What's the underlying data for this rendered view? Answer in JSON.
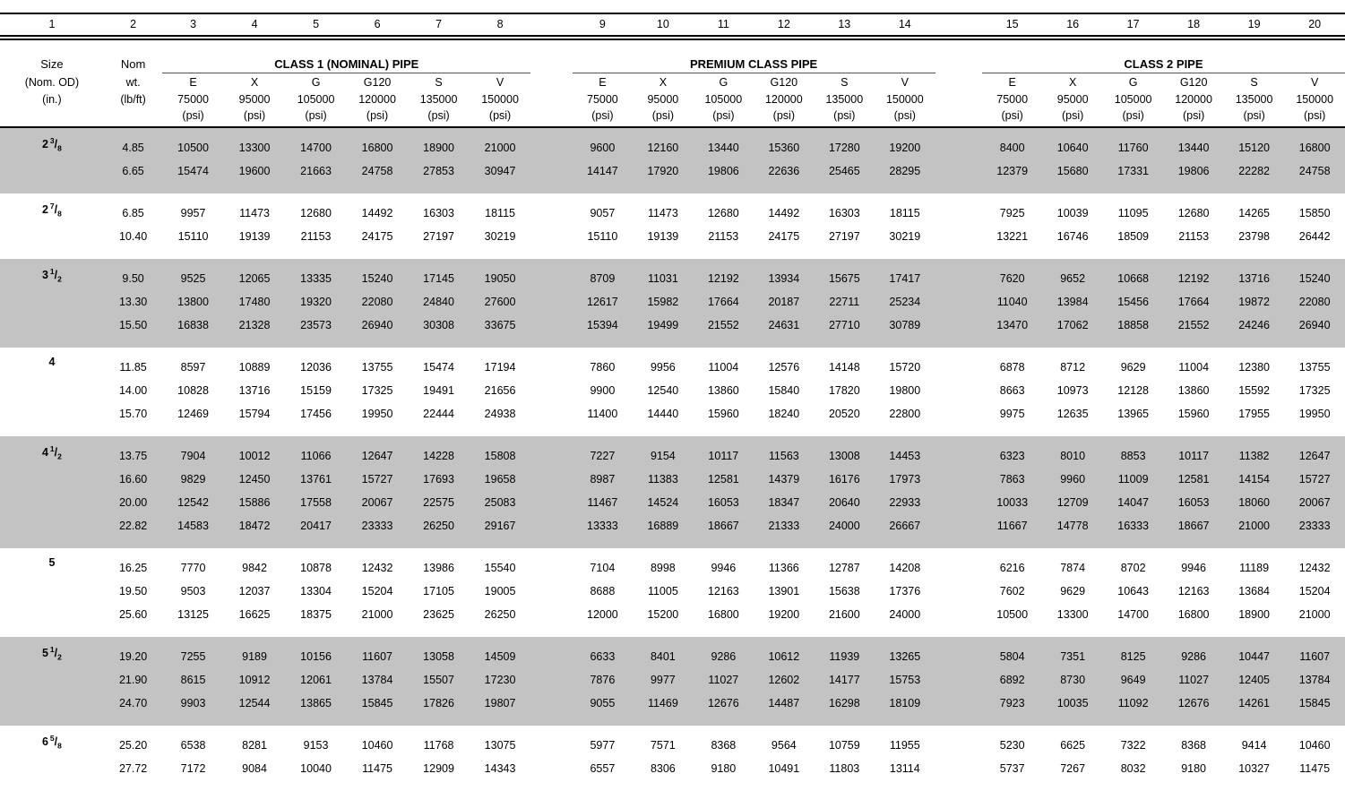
{
  "table": {
    "column_numbers": [
      "1",
      "2",
      "3",
      "4",
      "5",
      "6",
      "7",
      "8",
      "9",
      "10",
      "11",
      "12",
      "13",
      "14",
      "15",
      "16",
      "17",
      "18",
      "19",
      "20"
    ],
    "corner": {
      "size_lines": [
        "Size",
        "(Nom. OD)",
        "(in.)"
      ],
      "weight_lines": [
        "Nom",
        "wt.",
        "(lb/ft)"
      ]
    },
    "sections": [
      "CLASS 1 (NOMINAL) PIPE",
      "PREMIUM CLASS PIPE",
      "CLASS 2 PIPE"
    ],
    "grades": [
      "E",
      "X",
      "G",
      "G120",
      "S",
      "V"
    ],
    "grade_strengths": [
      "75000",
      "95000",
      "105000",
      "120000",
      "135000",
      "150000"
    ],
    "psi_unit": "(psi)",
    "groups": [
      {
        "size_whole": "2",
        "size_num": "3",
        "size_den": "8",
        "shaded": true,
        "rows": [
          {
            "wt": "4.85",
            "class1": [
              "10500",
              "13300",
              "14700",
              "16800",
              "18900",
              "21000"
            ],
            "premium": [
              "9600",
              "12160",
              "13440",
              "15360",
              "17280",
              "19200"
            ],
            "class2": [
              "8400",
              "10640",
              "11760",
              "13440",
              "15120",
              "16800"
            ]
          },
          {
            "wt": "6.65",
            "class1": [
              "15474",
              "19600",
              "21663",
              "24758",
              "27853",
              "30947"
            ],
            "premium": [
              "14147",
              "17920",
              "19806",
              "22636",
              "25465",
              "28295"
            ],
            "class2": [
              "12379",
              "15680",
              "17331",
              "19806",
              "22282",
              "24758"
            ]
          }
        ]
      },
      {
        "size_whole": "2",
        "size_num": "7",
        "size_den": "8",
        "shaded": false,
        "rows": [
          {
            "wt": "6.85",
            "class1": [
              "9957",
              "11473",
              "12680",
              "14492",
              "16303",
              "18115"
            ],
            "premium": [
              "9057",
              "11473",
              "12680",
              "14492",
              "16303",
              "18115"
            ],
            "class2": [
              "7925",
              "10039",
              "11095",
              "12680",
              "14265",
              "15850"
            ]
          },
          {
            "wt": "10.40",
            "class1": [
              "15110",
              "19139",
              "21153",
              "24175",
              "27197",
              "30219"
            ],
            "premium": [
              "15110",
              "19139",
              "21153",
              "24175",
              "27197",
              "30219"
            ],
            "class2": [
              "13221",
              "16746",
              "18509",
              "21153",
              "23798",
              "26442"
            ]
          }
        ]
      },
      {
        "size_whole": "3",
        "size_num": "1",
        "size_den": "2",
        "shaded": true,
        "rows": [
          {
            "wt": "9.50",
            "class1": [
              "9525",
              "12065",
              "13335",
              "15240",
              "17145",
              "19050"
            ],
            "premium": [
              "8709",
              "11031",
              "12192",
              "13934",
              "15675",
              "17417"
            ],
            "class2": [
              "7620",
              "9652",
              "10668",
              "12192",
              "13716",
              "15240"
            ]
          },
          {
            "wt": "13.30",
            "class1": [
              "13800",
              "17480",
              "19320",
              "22080",
              "24840",
              "27600"
            ],
            "premium": [
              "12617",
              "15982",
              "17664",
              "20187",
              "22711",
              "25234"
            ],
            "class2": [
              "11040",
              "13984",
              "15456",
              "17664",
              "19872",
              "22080"
            ]
          },
          {
            "wt": "15.50",
            "class1": [
              "16838",
              "21328",
              "23573",
              "26940",
              "30308",
              "33675"
            ],
            "premium": [
              "15394",
              "19499",
              "21552",
              "24631",
              "27710",
              "30789"
            ],
            "class2": [
              "13470",
              "17062",
              "18858",
              "21552",
              "24246",
              "26940"
            ]
          }
        ]
      },
      {
        "size_whole": "4",
        "size_num": "",
        "size_den": "",
        "shaded": false,
        "rows": [
          {
            "wt": "11.85",
            "class1": [
              "8597",
              "10889",
              "12036",
              "13755",
              "15474",
              "17194"
            ],
            "premium": [
              "7860",
              "9956",
              "11004",
              "12576",
              "14148",
              "15720"
            ],
            "class2": [
              "6878",
              "8712",
              "9629",
              "11004",
              "12380",
              "13755"
            ]
          },
          {
            "wt": "14.00",
            "class1": [
              "10828",
              "13716",
              "15159",
              "17325",
              "19491",
              "21656"
            ],
            "premium": [
              "9900",
              "12540",
              "13860",
              "15840",
              "17820",
              "19800"
            ],
            "class2": [
              "8663",
              "10973",
              "12128",
              "13860",
              "15592",
              "17325"
            ]
          },
          {
            "wt": "15.70",
            "class1": [
              "12469",
              "15794",
              "17456",
              "19950",
              "22444",
              "24938"
            ],
            "premium": [
              "11400",
              "14440",
              "15960",
              "18240",
              "20520",
              "22800"
            ],
            "class2": [
              "9975",
              "12635",
              "13965",
              "15960",
              "17955",
              "19950"
            ]
          }
        ]
      },
      {
        "size_whole": "4",
        "size_num": "1",
        "size_den": "2",
        "shaded": true,
        "rows": [
          {
            "wt": "13.75",
            "class1": [
              "7904",
              "10012",
              "11066",
              "12647",
              "14228",
              "15808"
            ],
            "premium": [
              "7227",
              "9154",
              "10117",
              "11563",
              "13008",
              "14453"
            ],
            "class2": [
              "6323",
              "8010",
              "8853",
              "10117",
              "11382",
              "12647"
            ]
          },
          {
            "wt": "16.60",
            "class1": [
              "9829",
              "12450",
              "13761",
              "15727",
              "17693",
              "19658"
            ],
            "premium": [
              "8987",
              "11383",
              "12581",
              "14379",
              "16176",
              "17973"
            ],
            "class2": [
              "7863",
              "9960",
              "11009",
              "12581",
              "14154",
              "15727"
            ]
          },
          {
            "wt": "20.00",
            "class1": [
              "12542",
              "15886",
              "17558",
              "20067",
              "22575",
              "25083"
            ],
            "premium": [
              "11467",
              "14524",
              "16053",
              "18347",
              "20640",
              "22933"
            ],
            "class2": [
              "10033",
              "12709",
              "14047",
              "16053",
              "18060",
              "20067"
            ]
          },
          {
            "wt": "22.82",
            "class1": [
              "14583",
              "18472",
              "20417",
              "23333",
              "26250",
              "29167"
            ],
            "premium": [
              "13333",
              "16889",
              "18667",
              "21333",
              "24000",
              "26667"
            ],
            "class2": [
              "11667",
              "14778",
              "16333",
              "18667",
              "21000",
              "23333"
            ]
          }
        ]
      },
      {
        "size_whole": "5",
        "size_num": "",
        "size_den": "",
        "shaded": false,
        "rows": [
          {
            "wt": "16.25",
            "class1": [
              "7770",
              "9842",
              "10878",
              "12432",
              "13986",
              "15540"
            ],
            "premium": [
              "7104",
              "8998",
              "9946",
              "11366",
              "12787",
              "14208"
            ],
            "class2": [
              "6216",
              "7874",
              "8702",
              "9946",
              "11189",
              "12432"
            ]
          },
          {
            "wt": "19.50",
            "class1": [
              "9503",
              "12037",
              "13304",
              "15204",
              "17105",
              "19005"
            ],
            "premium": [
              "8688",
              "11005",
              "12163",
              "13901",
              "15638",
              "17376"
            ],
            "class2": [
              "7602",
              "9629",
              "10643",
              "12163",
              "13684",
              "15204"
            ]
          },
          {
            "wt": "25.60",
            "class1": [
              "13125",
              "16625",
              "18375",
              "21000",
              "23625",
              "26250"
            ],
            "premium": [
              "12000",
              "15200",
              "16800",
              "19200",
              "21600",
              "24000"
            ],
            "class2": [
              "10500",
              "13300",
              "14700",
              "16800",
              "18900",
              "21000"
            ]
          }
        ]
      },
      {
        "size_whole": "5",
        "size_num": "1",
        "size_den": "2",
        "shaded": true,
        "rows": [
          {
            "wt": "19.20",
            "class1": [
              "7255",
              "9189",
              "10156",
              "11607",
              "13058",
              "14509"
            ],
            "premium": [
              "6633",
              "8401",
              "9286",
              "10612",
              "11939",
              "13265"
            ],
            "class2": [
              "5804",
              "7351",
              "8125",
              "9286",
              "10447",
              "11607"
            ]
          },
          {
            "wt": "21.90",
            "class1": [
              "8615",
              "10912",
              "12061",
              "13784",
              "15507",
              "17230"
            ],
            "premium": [
              "7876",
              "9977",
              "11027",
              "12602",
              "14177",
              "15753"
            ],
            "class2": [
              "6892",
              "8730",
              "9649",
              "11027",
              "12405",
              "13784"
            ]
          },
          {
            "wt": "24.70",
            "class1": [
              "9903",
              "12544",
              "13865",
              "15845",
              "17826",
              "19807"
            ],
            "premium": [
              "9055",
              "11469",
              "12676",
              "14487",
              "16298",
              "18109"
            ],
            "class2": [
              "7923",
              "10035",
              "11092",
              "12676",
              "14261",
              "15845"
            ]
          }
        ]
      },
      {
        "size_whole": "6",
        "size_num": "5",
        "size_den": "8",
        "shaded": false,
        "rows": [
          {
            "wt": "25.20",
            "class1": [
              "6538",
              "8281",
              "9153",
              "10460",
              "11768",
              "13075"
            ],
            "premium": [
              "5977",
              "7571",
              "8368",
              "9564",
              "10759",
              "11955"
            ],
            "class2": [
              "5230",
              "6625",
              "7322",
              "8368",
              "9414",
              "10460"
            ]
          },
          {
            "wt": "27.72",
            "class1": [
              "7172",
              "9084",
              "10040",
              "11475",
              "12909",
              "14343"
            ],
            "premium": [
              "6557",
              "8306",
              "9180",
              "10491",
              "11803",
              "13114"
            ],
            "class2": [
              "5737",
              "7267",
              "8032",
              "9180",
              "10327",
              "11475"
            ]
          }
        ]
      }
    ]
  },
  "colors": {
    "band": "#c3c3c3",
    "rule": "#000000"
  }
}
